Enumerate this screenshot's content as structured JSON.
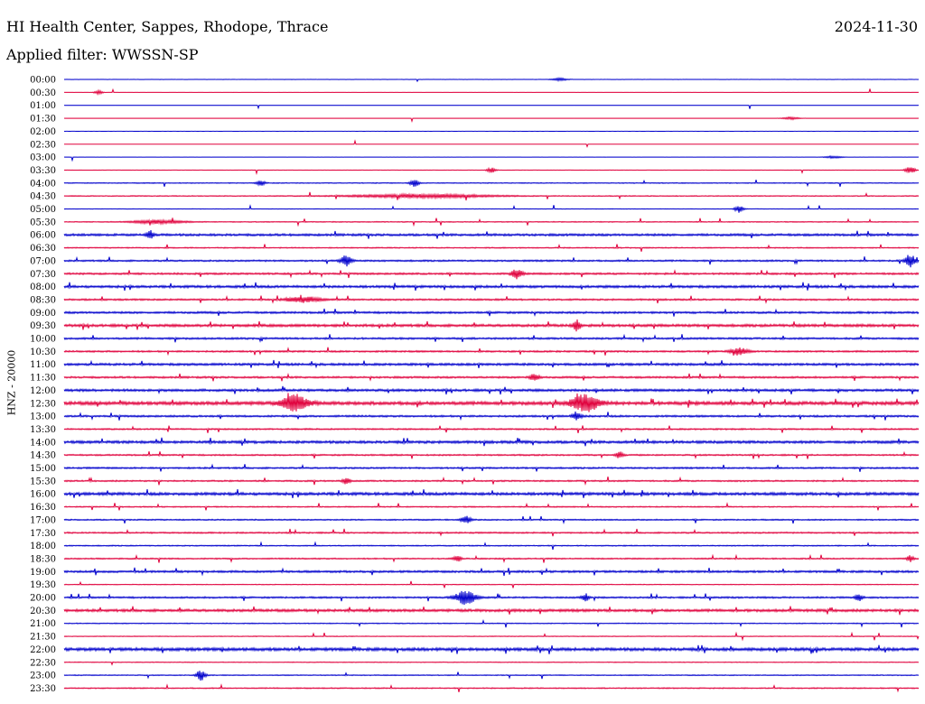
{
  "header": {
    "station_title": "HI Health Center, Sappes, Rhodope, Thrace",
    "date": "2024-11-30",
    "filter_text": "Applied filter: WWSSN-SP"
  },
  "chart_data": {
    "type": "line",
    "title": "HI Health Center, Sappes, Rhodope, Thrace",
    "ylabel": "HNZ - 20000",
    "xlabel": "",
    "colors": {
      "even": "#0000cc",
      "odd": "#e0003c",
      "text": "#000000"
    },
    "rows": [
      "00:00",
      "00:30",
      "01:00",
      "01:30",
      "02:00",
      "02:30",
      "03:00",
      "03:30",
      "04:00",
      "04:30",
      "05:00",
      "05:30",
      "06:00",
      "06:30",
      "07:00",
      "07:30",
      "08:00",
      "08:30",
      "09:00",
      "09:30",
      "10:00",
      "10:30",
      "11:00",
      "11:30",
      "12:00",
      "12:30",
      "13:00",
      "13:30",
      "14:00",
      "14:30",
      "15:00",
      "15:30",
      "16:00",
      "16:30",
      "17:00",
      "17:30",
      "18:00",
      "18:30",
      "19:00",
      "19:30",
      "20:00",
      "20:30",
      "21:00",
      "21:30",
      "22:00",
      "22:30",
      "23:00",
      "23:30"
    ],
    "noise_level": [
      0.1,
      0.1,
      0.1,
      0.05,
      0.05,
      0.05,
      0.1,
      0.15,
      0.5,
      0.5,
      0.3,
      0.5,
      1.2,
      0.6,
      0.9,
      1.0,
      1.3,
      0.9,
      1.1,
      1.4,
      1.0,
      0.9,
      1.2,
      1.0,
      1.3,
      1.8,
      1.0,
      0.8,
      1.4,
      0.8,
      0.9,
      0.8,
      1.5,
      0.6,
      0.7,
      0.8,
      0.6,
      0.7,
      1.1,
      0.4,
      0.9,
      1.4,
      0.5,
      0.4,
      1.6,
      0.4,
      0.5,
      0.6
    ],
    "events": [
      {
        "row": 0,
        "t": 0.58,
        "amp": 1.5,
        "dur": 0.01
      },
      {
        "row": 1,
        "t": 0.04,
        "amp": 2,
        "dur": 0.005
      },
      {
        "row": 3,
        "t": 0.85,
        "amp": 1.5,
        "dur": 0.01
      },
      {
        "row": 6,
        "t": 0.9,
        "amp": 1.5,
        "dur": 0.01
      },
      {
        "row": 7,
        "t": 0.5,
        "amp": 3,
        "dur": 0.005
      },
      {
        "row": 7,
        "t": 0.99,
        "amp": 4,
        "dur": 0.006
      },
      {
        "row": 8,
        "t": 0.23,
        "amp": 3,
        "dur": 0.005
      },
      {
        "row": 8,
        "t": 0.41,
        "amp": 4,
        "dur": 0.005
      },
      {
        "row": 9,
        "t": 0.42,
        "amp": 2,
        "dur": 0.08
      },
      {
        "row": 10,
        "t": 0.79,
        "amp": 4,
        "dur": 0.005
      },
      {
        "row": 11,
        "t": 0.11,
        "amp": 2,
        "dur": 0.03
      },
      {
        "row": 12,
        "t": 0.1,
        "amp": 5,
        "dur": 0.004
      },
      {
        "row": 14,
        "t": 0.33,
        "amp": 6,
        "dur": 0.006
      },
      {
        "row": 14,
        "t": 0.99,
        "amp": 7,
        "dur": 0.006
      },
      {
        "row": 15,
        "t": 0.53,
        "amp": 6,
        "dur": 0.006
      },
      {
        "row": 17,
        "t": 0.28,
        "amp": 3,
        "dur": 0.02
      },
      {
        "row": 19,
        "t": 0.6,
        "amp": 6,
        "dur": 0.004
      },
      {
        "row": 21,
        "t": 0.79,
        "amp": 4,
        "dur": 0.01
      },
      {
        "row": 23,
        "t": 0.55,
        "amp": 4,
        "dur": 0.005
      },
      {
        "row": 25,
        "t": 0.27,
        "amp": 9,
        "dur": 0.015
      },
      {
        "row": 25,
        "t": 0.61,
        "amp": 10,
        "dur": 0.015
      },
      {
        "row": 26,
        "t": 0.6,
        "amp": 4,
        "dur": 0.005
      },
      {
        "row": 29,
        "t": 0.65,
        "amp": 4,
        "dur": 0.004
      },
      {
        "row": 31,
        "t": 0.33,
        "amp": 4,
        "dur": 0.004
      },
      {
        "row": 34,
        "t": 0.47,
        "amp": 4,
        "dur": 0.006
      },
      {
        "row": 37,
        "t": 0.46,
        "amp": 4,
        "dur": 0.004
      },
      {
        "row": 37,
        "t": 0.99,
        "amp": 4,
        "dur": 0.004
      },
      {
        "row": 40,
        "t": 0.47,
        "amp": 8,
        "dur": 0.012
      },
      {
        "row": 40,
        "t": 0.61,
        "amp": 4,
        "dur": 0.004
      },
      {
        "row": 40,
        "t": 0.93,
        "amp": 4,
        "dur": 0.004
      },
      {
        "row": 46,
        "t": 0.16,
        "amp": 6,
        "dur": 0.005
      }
    ]
  }
}
